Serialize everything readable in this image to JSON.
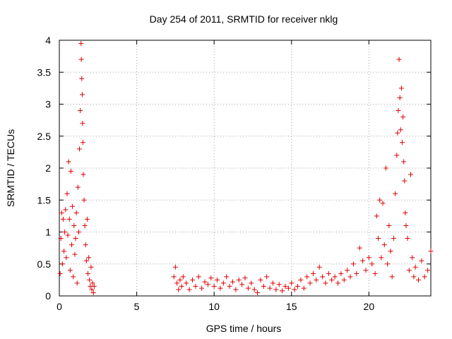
{
  "chart_data": {
    "type": "scatter",
    "title": "Day 254 of 2011, SRMTID for receiver nklg",
    "xlabel": "GPS time / hours",
    "ylabel": "SRMTID / TECUs",
    "xlim": [
      0,
      24
    ],
    "ylim": [
      0,
      4
    ],
    "xticks": [
      0,
      5,
      10,
      15,
      20
    ],
    "xtick_labels": [
      "0",
      "5",
      "10",
      "15",
      "20"
    ],
    "yticks": [
      0,
      0.5,
      1,
      1.5,
      2,
      2.5,
      3,
      3.5,
      4
    ],
    "ytick_labels": [
      "0",
      "0.5",
      "1",
      "1.5",
      "2",
      "2.5",
      "3",
      "3.5",
      "4"
    ],
    "grid": true,
    "marker": "+",
    "color": "#e00000",
    "series": [
      {
        "name": "SRMTID",
        "points": [
          [
            0.05,
            0.35
          ],
          [
            0.1,
            0.9
          ],
          [
            0.15,
            1.3
          ],
          [
            0.2,
            0.5
          ],
          [
            0.25,
            1.2
          ],
          [
            0.3,
            0.7
          ],
          [
            0.35,
            1.0
          ],
          [
            0.4,
            1.35
          ],
          [
            0.45,
            0.6
          ],
          [
            0.5,
            1.6
          ],
          [
            0.55,
            0.95
          ],
          [
            0.6,
            2.1
          ],
          [
            0.65,
            1.2
          ],
          [
            0.7,
            0.4
          ],
          [
            0.75,
            1.95
          ],
          [
            0.8,
            0.8
          ],
          [
            0.85,
            1.4
          ],
          [
            0.9,
            0.3
          ],
          [
            0.95,
            1.1
          ],
          [
            1.0,
            0.65
          ],
          [
            1.05,
            0.9
          ],
          [
            1.1,
            1.3
          ],
          [
            1.15,
            0.2
          ],
          [
            1.2,
            1.7
          ],
          [
            1.25,
            1.0
          ],
          [
            1.3,
            2.3
          ],
          [
            1.35,
            2.9
          ],
          [
            1.4,
            3.95
          ],
          [
            1.42,
            3.7
          ],
          [
            1.45,
            3.4
          ],
          [
            1.48,
            3.15
          ],
          [
            1.5,
            2.7
          ],
          [
            1.52,
            2.4
          ],
          [
            1.55,
            1.9
          ],
          [
            1.6,
            1.5
          ],
          [
            1.65,
            1.1
          ],
          [
            1.7,
            0.8
          ],
          [
            1.75,
            0.55
          ],
          [
            1.8,
            1.2
          ],
          [
            1.85,
            0.35
          ],
          [
            1.9,
            0.6
          ],
          [
            1.95,
            0.25
          ],
          [
            2.0,
            0.15
          ],
          [
            2.05,
            0.45
          ],
          [
            2.1,
            0.1
          ],
          [
            2.15,
            0.2
          ],
          [
            2.2,
            0.05
          ],
          [
            2.25,
            0.15
          ],
          [
            7.4,
            0.3
          ],
          [
            7.5,
            0.45
          ],
          [
            7.6,
            0.2
          ],
          [
            7.7,
            0.1
          ],
          [
            7.8,
            0.25
          ],
          [
            7.9,
            0.15
          ],
          [
            8.0,
            0.3
          ],
          [
            8.2,
            0.2
          ],
          [
            8.4,
            0.1
          ],
          [
            8.6,
            0.25
          ],
          [
            8.8,
            0.15
          ],
          [
            9.0,
            0.3
          ],
          [
            9.2,
            0.12
          ],
          [
            9.4,
            0.22
          ],
          [
            9.6,
            0.18
          ],
          [
            9.8,
            0.28
          ],
          [
            10.0,
            0.15
          ],
          [
            10.2,
            0.25
          ],
          [
            10.4,
            0.12
          ],
          [
            10.6,
            0.2
          ],
          [
            10.8,
            0.3
          ],
          [
            11.0,
            0.15
          ],
          [
            11.2,
            0.22
          ],
          [
            11.4,
            0.1
          ],
          [
            11.6,
            0.25
          ],
          [
            11.8,
            0.18
          ],
          [
            12.0,
            0.28
          ],
          [
            12.2,
            0.12
          ],
          [
            12.4,
            0.2
          ],
          [
            12.6,
            0.1
          ],
          [
            12.8,
            0.05
          ],
          [
            13.0,
            0.25
          ],
          [
            13.2,
            0.15
          ],
          [
            13.4,
            0.3
          ],
          [
            13.6,
            0.12
          ],
          [
            13.8,
            0.2
          ],
          [
            14.0,
            0.1
          ],
          [
            14.2,
            0.18
          ],
          [
            14.4,
            0.08
          ],
          [
            14.6,
            0.15
          ],
          [
            14.8,
            0.12
          ],
          [
            15.0,
            0.2
          ],
          [
            15.2,
            0.1
          ],
          [
            15.4,
            0.15
          ],
          [
            15.6,
            0.25
          ],
          [
            15.8,
            0.12
          ],
          [
            16.0,
            0.3
          ],
          [
            16.2,
            0.2
          ],
          [
            16.4,
            0.35
          ],
          [
            16.6,
            0.25
          ],
          [
            16.8,
            0.45
          ],
          [
            17.0,
            0.3
          ],
          [
            17.2,
            0.2
          ],
          [
            17.4,
            0.35
          ],
          [
            17.6,
            0.25
          ],
          [
            17.8,
            0.3
          ],
          [
            18.0,
            0.2
          ],
          [
            18.2,
            0.35
          ],
          [
            18.4,
            0.25
          ],
          [
            18.6,
            0.4
          ],
          [
            18.8,
            0.3
          ],
          [
            19.0,
            0.5
          ],
          [
            19.2,
            0.35
          ],
          [
            19.4,
            0.75
          ],
          [
            19.6,
            0.55
          ],
          [
            19.8,
            0.4
          ],
          [
            20.0,
            0.6
          ],
          [
            20.2,
            0.5
          ],
          [
            20.4,
            0.35
          ],
          [
            20.5,
            1.25
          ],
          [
            20.6,
            0.9
          ],
          [
            20.7,
            1.5
          ],
          [
            20.8,
            0.6
          ],
          [
            20.9,
            1.45
          ],
          [
            21.0,
            0.8
          ],
          [
            21.1,
            2.0
          ],
          [
            21.2,
            0.5
          ],
          [
            21.3,
            1.1
          ],
          [
            21.4,
            0.7
          ],
          [
            21.5,
            0.3
          ],
          [
            21.6,
            0.9
          ],
          [
            21.7,
            1.6
          ],
          [
            21.8,
            2.2
          ],
          [
            21.85,
            2.55
          ],
          [
            21.9,
            2.9
          ],
          [
            21.95,
            3.7
          ],
          [
            22.0,
            3.1
          ],
          [
            22.05,
            2.6
          ],
          [
            22.1,
            3.25
          ],
          [
            22.15,
            2.4
          ],
          [
            22.2,
            2.8
          ],
          [
            22.25,
            2.1
          ],
          [
            22.3,
            1.8
          ],
          [
            22.35,
            1.3
          ],
          [
            22.4,
            1.1
          ],
          [
            22.5,
            0.9
          ],
          [
            22.6,
            0.4
          ],
          [
            22.7,
            1.9
          ],
          [
            22.8,
            0.6
          ],
          [
            22.9,
            0.3
          ],
          [
            23.0,
            0.45
          ],
          [
            23.2,
            0.25
          ],
          [
            23.4,
            0.55
          ],
          [
            23.6,
            0.3
          ],
          [
            23.8,
            0.4
          ],
          [
            24.0,
            0.7
          ]
        ]
      }
    ]
  }
}
